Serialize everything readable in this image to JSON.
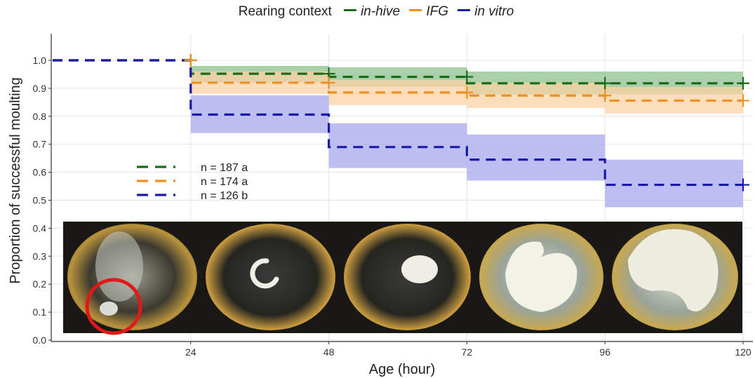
{
  "chart_data": {
    "type": "line",
    "subtype": "step",
    "legend": {
      "title": "Rearing context",
      "placement": "top",
      "entries": [
        "in-hive",
        "IFG",
        "in vitro"
      ]
    },
    "xlabel": "Age (hour)",
    "ylabel": "Proportion of successful moulting",
    "xlim": [
      0,
      120
    ],
    "ylim": [
      0.0,
      1.0
    ],
    "x_ticks": [
      24,
      48,
      72,
      96,
      120
    ],
    "y_ticks": [
      0.0,
      0.1,
      0.2,
      0.3,
      0.4,
      0.5,
      0.6,
      0.7,
      0.8,
      0.9,
      1.0
    ],
    "grid": true,
    "series": [
      {
        "name": "in-hive",
        "color": "#1a6b1a",
        "band_color": "#8cc08c",
        "steps": [
          {
            "x": [
              0,
              24
            ],
            "y": 1.0
          },
          {
            "x": [
              24,
              48
            ],
            "y": 0.952,
            "lo": 0.92,
            "hi": 0.98
          },
          {
            "x": [
              48,
              72
            ],
            "y": 0.941,
            "lo": 0.905,
            "hi": 0.975
          },
          {
            "x": [
              72,
              96
            ],
            "y": 0.918,
            "lo": 0.878,
            "hi": 0.96
          },
          {
            "x": [
              96,
              120
            ],
            "y": 0.918,
            "lo": 0.878,
            "hi": 0.96
          }
        ],
        "censor_marks": [
          24,
          48,
          72,
          96,
          120
        ]
      },
      {
        "name": "IFG",
        "color": "#f0901e",
        "band_color": "#fcd3a6",
        "steps": [
          {
            "x": [
              0,
              24
            ],
            "y": 1.0
          },
          {
            "x": [
              24,
              48
            ],
            "y": 0.92,
            "lo": 0.88,
            "hi": 0.96
          },
          {
            "x": [
              48,
              72
            ],
            "y": 0.885,
            "lo": 0.84,
            "hi": 0.93
          },
          {
            "x": [
              72,
              96
            ],
            "y": 0.874,
            "lo": 0.83,
            "hi": 0.92
          },
          {
            "x": [
              96,
              120
            ],
            "y": 0.856,
            "lo": 0.81,
            "hi": 0.905
          }
        ],
        "censor_marks": [
          24,
          48,
          72,
          96,
          120
        ]
      },
      {
        "name": "in vitro",
        "color": "#1a1aaa",
        "band_color": "#a8a8ee",
        "steps": [
          {
            "x": [
              0,
              24
            ],
            "y": 1.0
          },
          {
            "x": [
              24,
              48
            ],
            "y": 0.806,
            "lo": 0.74,
            "hi": 0.875
          },
          {
            "x": [
              48,
              72
            ],
            "y": 0.69,
            "lo": 0.615,
            "hi": 0.775
          },
          {
            "x": [
              72,
              96
            ],
            "y": 0.645,
            "lo": 0.57,
            "hi": 0.735
          },
          {
            "x": [
              96,
              120
            ],
            "y": 0.555,
            "lo": 0.475,
            "hi": 0.645
          }
        ],
        "censor_marks": [
          120
        ]
      }
    ],
    "annotations": [
      {
        "text": "n = 187  a",
        "series": "in-hive"
      },
      {
        "text": "n = 174  a",
        "series": "IFG"
      },
      {
        "text": "n = 126  b",
        "series": "in vitro"
      }
    ],
    "inset_photos": 5
  }
}
